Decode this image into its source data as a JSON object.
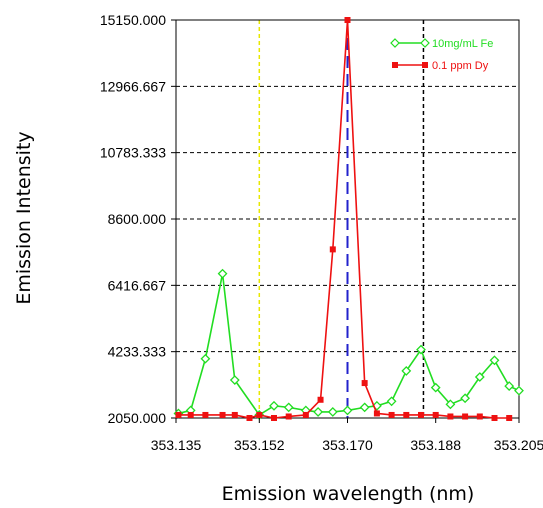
{
  "chart_data": {
    "type": "line",
    "title": "",
    "xlabel": "Emission wavelength (nm)",
    "ylabel": "Emission Intensity",
    "xlim": [
      353.135,
      353.205
    ],
    "ylim": [
      2050.0,
      15150.0
    ],
    "x_ticks": [
      "353.135",
      "353.152",
      "353.170",
      "353.188",
      "353.205"
    ],
    "y_ticks": [
      "2050.000",
      "4233.333",
      "6416.667",
      "8600.000",
      "10783.333",
      "12966.667",
      "15150.000"
    ],
    "grid": "horizontal dashed",
    "legend_position": "top-right",
    "vertical_markers": [
      {
        "x": 353.152,
        "color": "#e8e800",
        "style": "dashed"
      },
      {
        "x": 353.17,
        "color": "#2222cc",
        "style": "long-dashed"
      },
      {
        "x": 353.1855,
        "color": "#000000",
        "style": "dashed"
      }
    ],
    "series": [
      {
        "name": "10mg/mL Fe",
        "color": "#22dd22",
        "marker": "diamond",
        "x": [
          353.1355,
          353.138,
          353.141,
          353.1445,
          353.147,
          353.152,
          353.155,
          353.158,
          353.1615,
          353.164,
          353.167,
          353.17,
          353.1735,
          353.176,
          353.179,
          353.182,
          353.185,
          353.188,
          353.191,
          353.194,
          353.197,
          353.2,
          353.203,
          353.205
        ],
        "y": [
          2200,
          2300,
          4000,
          6800,
          3300,
          2150,
          2450,
          2400,
          2300,
          2250,
          2250,
          2300,
          2400,
          2450,
          2600,
          3600,
          4300,
          3050,
          2500,
          2700,
          3400,
          3950,
          3100,
          2950
        ]
      },
      {
        "name": "0.1 ppm Dy",
        "color": "#ee1111",
        "marker": "square",
        "x": [
          353.1355,
          353.138,
          353.141,
          353.1445,
          353.147,
          353.15,
          353.152,
          353.155,
          353.158,
          353.1615,
          353.1645,
          353.167,
          353.17,
          353.1735,
          353.176,
          353.179,
          353.182,
          353.185,
          353.188,
          353.191,
          353.194,
          353.197,
          353.2,
          353.203
        ],
        "y": [
          2150,
          2150,
          2150,
          2150,
          2150,
          2050,
          2150,
          2050,
          2100,
          2150,
          2650,
          7600,
          15150,
          3200,
          2200,
          2150,
          2150,
          2150,
          2150,
          2100,
          2100,
          2100,
          2050,
          2050
        ]
      }
    ]
  }
}
